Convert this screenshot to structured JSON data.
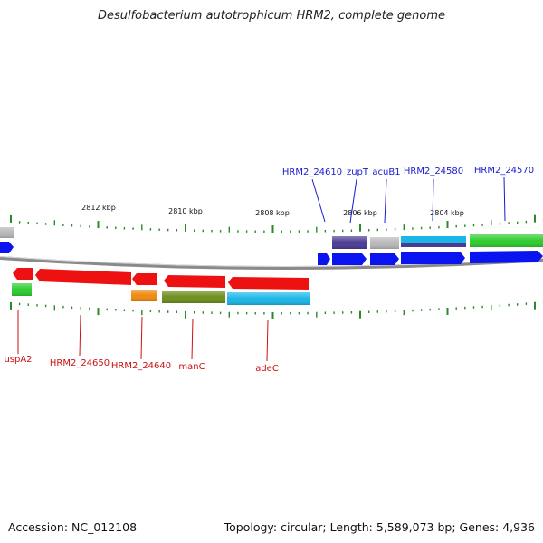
{
  "title": "Desulfobacterium autotrophicum HRM2, complete genome",
  "footer": {
    "accession": "Accession: NC_012108",
    "topology": "Topology: circular; Length: 5,589,073 bp; Genes: 4,936"
  },
  "scale_labels": [
    "2812 kbp",
    "2810 kbp",
    "2808 kbp",
    "2806 kbp",
    "2804 kbp"
  ],
  "top_gene_labels": [
    "HRM2_24610",
    "zupT",
    "acuB1",
    "HRM2_24580",
    "HRM2_24570"
  ],
  "bottom_gene_labels": [
    "uspA2",
    "HRM2_24650",
    "HRM2_24640",
    "manC",
    "adeC"
  ],
  "colors": {
    "label_top": "#1a1ad0",
    "label_bottom": "#cc1111",
    "tick": "#2a8a2a",
    "backbone": "#888888",
    "forward_cds": "#0a14f0",
    "reverse_cds": "#ee1111",
    "gray": "#b8b8b8",
    "purple": "#4a3c94",
    "cyan": "#1ab6e8",
    "green": "#2ecc2e",
    "olive": "#6f8f1f",
    "orange": "#f08a10"
  }
}
